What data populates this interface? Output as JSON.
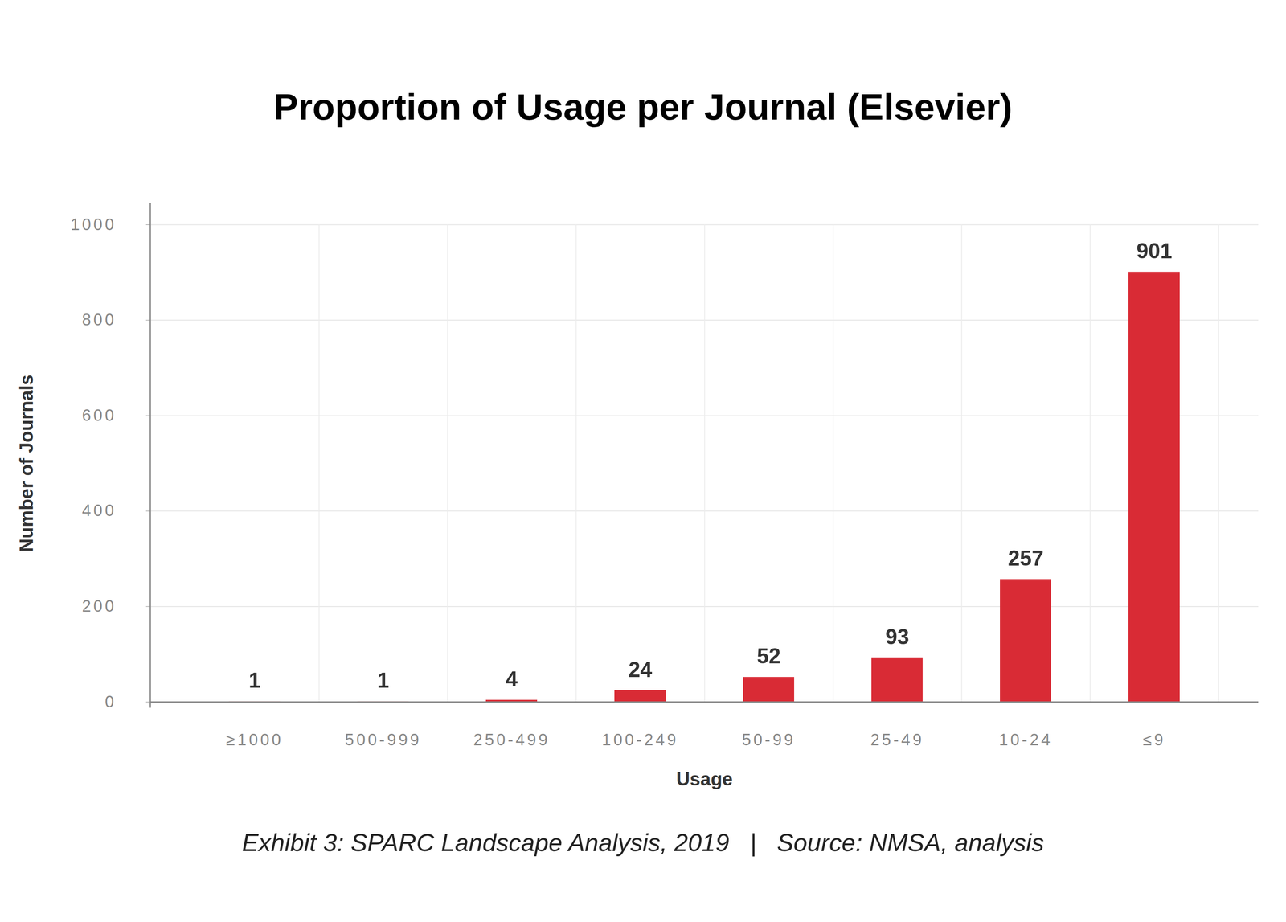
{
  "chart_data": {
    "type": "bar",
    "title": "Proportion of Usage per Journal (Elsevier)",
    "caption": "Exhibit 3: SPARC Landscape Analysis, 2019   |   Source: NMSA, analysis",
    "x_label": "Usage",
    "y_label": "Number of Journals",
    "categories": [
      "≥1000",
      "500-999",
      "250-499",
      "100-249",
      "50-99",
      "25-49",
      "10-24",
      "≤9"
    ],
    "values": [
      1,
      1,
      4,
      24,
      52,
      93,
      257,
      901
    ],
    "color": "#d92b35",
    "ylim": [
      0,
      1000
    ],
    "yticks": [
      0,
      200,
      400,
      600,
      800,
      1000
    ],
    "grid": true,
    "data_labels": true
  }
}
